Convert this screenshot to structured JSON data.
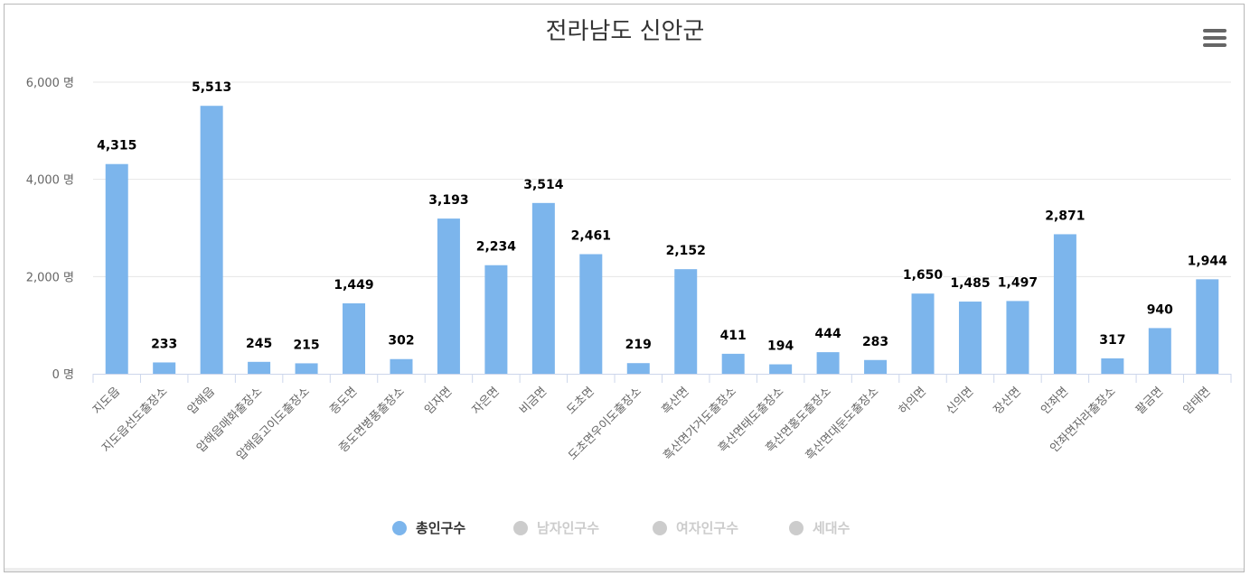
{
  "chart_data": {
    "type": "bar",
    "title": "전라남도 신안군",
    "categories": [
      "지도읍",
      "지도읍선도출장소",
      "압해읍",
      "압해읍매화출장소",
      "압해읍고이도출장소",
      "증도면",
      "증도면병풍출장소",
      "임자면",
      "자은면",
      "비금면",
      "도초면",
      "도초면우이도출장소",
      "흑산면",
      "흑산면가거도출장소",
      "흑산면태도출장소",
      "흑산면홍도출장소",
      "흑산면대둔도출장소",
      "하의면",
      "신의면",
      "장산면",
      "안좌면",
      "안좌면자라출장소",
      "팔금면",
      "암태면"
    ],
    "series": [
      {
        "name": "총인구수",
        "values": [
          4315,
          233,
          5513,
          245,
          215,
          1449,
          302,
          3193,
          2234,
          3514,
          2461,
          219,
          2152,
          411,
          194,
          444,
          283,
          1650,
          1485,
          1497,
          2871,
          317,
          940,
          1944
        ],
        "color": "#7cb5ec",
        "visible": true
      }
    ],
    "data_labels": [
      "4,315",
      "233",
      "5,513",
      "245",
      "215",
      "1,449",
      "302",
      "3,193",
      "2,234",
      "3,514",
      "2,461",
      "219",
      "2,152",
      "411",
      "194",
      "444",
      "283",
      "1,650",
      "1,485",
      "1,497",
      "2,871",
      "317",
      "940",
      "1,944"
    ],
    "y_ticks": [
      0,
      2000,
      4000,
      6000
    ],
    "y_tick_labels": [
      "0 명",
      "2,000 명",
      "4,000 명",
      "6,000 명"
    ],
    "ylim": [
      0,
      6000
    ],
    "grid": true,
    "legend_position": "bottom-center",
    "legend": [
      {
        "name": "총인구수",
        "color": "#7cb5ec",
        "active": true
      },
      {
        "name": "남자인구수",
        "color": "#cccccc",
        "active": false
      },
      {
        "name": "여자인구수",
        "color": "#cccccc",
        "active": false
      },
      {
        "name": "세대수",
        "color": "#cccccc",
        "active": false
      }
    ]
  },
  "menu": {
    "icon": "hamburger-menu-icon"
  }
}
